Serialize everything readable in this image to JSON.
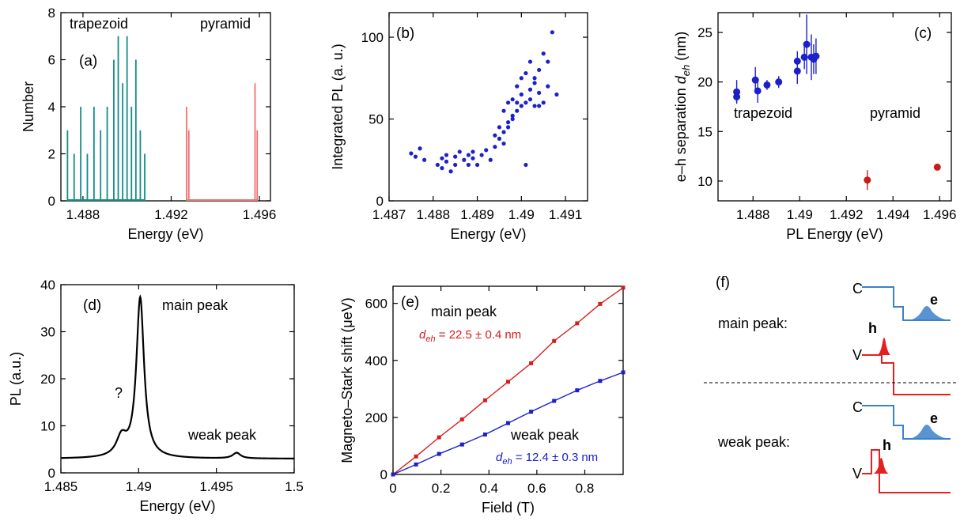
{
  "panels": [
    {
      "id": "a",
      "label": "(a)"
    },
    {
      "id": "b",
      "label": "(b)"
    },
    {
      "id": "c",
      "label": "(c)"
    },
    {
      "id": "d",
      "label": "(d)"
    },
    {
      "id": "e",
      "label": "(e)"
    },
    {
      "id": "f",
      "label": "(f)"
    }
  ],
  "chart_data": [
    {
      "id": "a",
      "type": "bar",
      "label": "(a)",
      "xlabel": "Energy (eV)",
      "ylabel": "Number",
      "xlim": [
        1.487,
        1.4965
      ],
      "ylim": [
        0,
        8
      ],
      "xticks": [
        1.488,
        1.492,
        1.496
      ],
      "xtick_labels": [
        "1.488",
        "1.492",
        "1.496"
      ],
      "yticks": [
        0,
        2,
        4,
        6,
        8
      ],
      "ytick_labels": [
        "0",
        "2",
        "4",
        "6",
        "8"
      ],
      "series": [
        {
          "name": "trapezoid",
          "color": "#138c87",
          "x": [
            1.4873,
            1.4876,
            1.4879,
            1.4882,
            1.4885,
            1.4888,
            1.4891,
            1.4894,
            1.4896,
            1.4898,
            1.49,
            1.4902,
            1.4904,
            1.4906,
            1.4908
          ],
          "values": [
            3,
            2,
            4,
            2,
            4,
            3,
            4,
            6,
            7,
            5,
            7,
            4,
            6,
            3,
            2
          ]
        },
        {
          "name": "pyramid",
          "color": "#f07070",
          "x": [
            1.4927,
            1.4928,
            1.4958,
            1.4959
          ],
          "values": [
            4,
            3,
            5,
            3
          ]
        }
      ],
      "annotations": [
        "trapezoid",
        "pyramid"
      ]
    },
    {
      "id": "b",
      "type": "scatter",
      "label": "(b)",
      "xlabel": "Energy (eV)",
      "ylabel": "Integrated PL (a. u.)",
      "xlim": [
        1.487,
        1.4915
      ],
      "ylim": [
        0,
        115
      ],
      "xticks": [
        1.487,
        1.488,
        1.489,
        1.49,
        1.491
      ],
      "xtick_labels": [
        "1.487",
        "1.488",
        "1.489",
        "1.49",
        "1.491"
      ],
      "yticks": [
        0,
        50,
        100
      ],
      "ytick_labels": [
        "0",
        "50",
        "100"
      ],
      "series": [
        {
          "color": "#1c20c8",
          "x": [
            1.4875,
            1.4876,
            1.4877,
            1.4878,
            1.4881,
            1.4882,
            1.4882,
            1.4883,
            1.4883,
            1.4884,
            1.4885,
            1.4885,
            1.4886,
            1.4887,
            1.4888,
            1.4888,
            1.4889,
            1.4889,
            1.489,
            1.4891,
            1.4892,
            1.4893,
            1.4894,
            1.4894,
            1.4895,
            1.4895,
            1.4896,
            1.4896,
            1.4897,
            1.4897,
            1.4898,
            1.4898,
            1.4899,
            1.4899,
            1.49,
            1.49,
            1.49,
            1.4901,
            1.4901,
            1.4902,
            1.4902,
            1.4903,
            1.4903,
            1.4904,
            1.4904,
            1.4905,
            1.4905,
            1.4906,
            1.4906,
            1.4907,
            1.4908,
            1.4896,
            1.4897,
            1.4898,
            1.4899,
            1.4901,
            1.4902,
            1.4903,
            1.4904
          ],
          "values": [
            29,
            27,
            32,
            25,
            22,
            26,
            20,
            24,
            28,
            18,
            22,
            27,
            30,
            25,
            28,
            22,
            26,
            30,
            22,
            28,
            31,
            25,
            40,
            33,
            45,
            38,
            55,
            42,
            60,
            48,
            62,
            50,
            70,
            55,
            65,
            58,
            75,
            60,
            78,
            62,
            85,
            58,
            72,
            66,
            80,
            60,
            90,
            70,
            85,
            103,
            65,
            35,
            45,
            52,
            60,
            22,
            68,
            75,
            58
          ]
        }
      ]
    },
    {
      "id": "c",
      "type": "scatter",
      "label": "(c)",
      "xlabel": "PL Energy (eV)",
      "ylabel": "e–h separation d_eh (nm)",
      "ylabel_main": "e–h separation ",
      "ylabel_var": "d",
      "ylabel_sub": "eh",
      "ylabel_unit": " (nm)",
      "xlim": [
        1.4865,
        1.4965
      ],
      "ylim": [
        8,
        27
      ],
      "xticks": [
        1.488,
        1.49,
        1.492,
        1.494,
        1.496
      ],
      "xtick_labels": [
        "1.488",
        "1.49",
        "1.492",
        "1.494",
        "1.496"
      ],
      "yticks": [
        10,
        15,
        20,
        25
      ],
      "ytick_labels": [
        "10",
        "15",
        "20",
        "25"
      ],
      "series": [
        {
          "name": "trapezoid",
          "color": "#1c20c8",
          "x": [
            1.4873,
            1.4873,
            1.4881,
            1.4882,
            1.4886,
            1.4891,
            1.4899,
            1.4899,
            1.4902,
            1.4903,
            1.4905,
            1.4906,
            1.4907
          ],
          "values": [
            19.0,
            18.5,
            20.2,
            19.1,
            19.7,
            20.0,
            22.1,
            21.1,
            22.5,
            23.8,
            22.5,
            22.3,
            22.6
          ],
          "err": [
            1.2,
            0.6,
            1.3,
            1.2,
            0.5,
            0.6,
            1.0,
            1.3,
            1.2,
            3.0,
            2.3,
            1.5,
            1.8
          ]
        },
        {
          "name": "pyramid",
          "color": "#c81c1c",
          "x": [
            1.4929,
            1.4959
          ],
          "values": [
            10.1,
            11.4
          ],
          "err": [
            1.0,
            0.3
          ]
        }
      ],
      "annotations": [
        "trapezoid",
        "pyramid"
      ]
    },
    {
      "id": "d",
      "type": "line",
      "label": "(d)",
      "xlabel": "Energy (eV)",
      "ylabel": "PL (a.u.)",
      "xlim": [
        1.485,
        1.5
      ],
      "ylim": [
        0,
        40
      ],
      "xticks": [
        1.485,
        1.49,
        1.495,
        1.5
      ],
      "xtick_labels": [
        "1.485",
        "1.49",
        "1.495",
        "1.5"
      ],
      "yticks": [
        0,
        10,
        20,
        30,
        40
      ],
      "ytick_labels": [
        "0",
        "10",
        "20",
        "30",
        "40"
      ],
      "baseline": 3.0,
      "peaks": [
        {
          "center": 1.4889,
          "height": 4.0,
          "width": 0.0004
        },
        {
          "center": 1.4901,
          "height": 34.0,
          "width": 0.0003
        },
        {
          "center": 1.4963,
          "height": 1.2,
          "width": 0.0003
        }
      ],
      "annotations": [
        "main peak",
        "weak peak",
        "?"
      ]
    },
    {
      "id": "e",
      "type": "line",
      "label": "(e)",
      "xlabel": "Field (T)",
      "ylabel": "Magneto–Stark shift (μeV)",
      "xlim": [
        0,
        0.96
      ],
      "ylim": [
        0,
        660
      ],
      "xticks": [
        0,
        0.2,
        0.4,
        0.6,
        0.8
      ],
      "xtick_labels": [
        "0",
        "0.2",
        "0.4",
        "0.6",
        "0.8"
      ],
      "yticks": [
        0,
        200,
        400,
        600
      ],
      "ytick_labels": [
        "0",
        "200",
        "400",
        "600"
      ],
      "series": [
        {
          "name": "main peak",
          "color": "#d81c1c",
          "x": [
            0,
            0.096,
            0.192,
            0.288,
            0.384,
            0.48,
            0.576,
            0.672,
            0.768,
            0.864,
            0.96
          ],
          "values": [
            0,
            63,
            130,
            193,
            260,
            325,
            390,
            468,
            530,
            598,
            655
          ]
        },
        {
          "name": "weak peak",
          "color": "#1c20c8",
          "x": [
            0,
            0.096,
            0.192,
            0.288,
            0.384,
            0.48,
            0.576,
            0.672,
            0.768,
            0.864,
            0.96
          ],
          "values": [
            0,
            35,
            72,
            105,
            140,
            180,
            220,
            258,
            295,
            328,
            358
          ]
        }
      ],
      "annotations": [
        {
          "title": "main peak",
          "formula_var": "d",
          "formula_sub": "eh",
          "formula_rest": " = 22.5 ± 0.4",
          "formula_unit": "nm"
        },
        {
          "title": "weak peak",
          "formula_var": "d",
          "formula_sub": "eh",
          "formula_rest": " = 12.4 ± 0.3",
          "formula_unit": "nm"
        }
      ]
    }
  ],
  "schematic": {
    "label": "(f)",
    "rows": [
      {
        "name": "main peak:",
        "c_label": "C",
        "v_label": "V",
        "e_label": "e",
        "h_label": "h"
      },
      {
        "name": "weak peak:",
        "c_label": "C",
        "v_label": "V",
        "e_label": "e",
        "h_label": "h"
      }
    ],
    "c_color": "#3b82c8",
    "v_color": "#e42020"
  }
}
